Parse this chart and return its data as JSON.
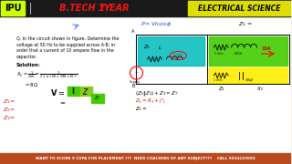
{
  "bg_color": "#f0ede0",
  "header_bg": "#1a1a1a",
  "ipu_box_color": "#ccff00",
  "ipu_text": "IPU",
  "btech_text": "B.TECH 1",
  "btech_super": "ST",
  "btech_text2": " YEAR",
  "es_box_color": "#dddd00",
  "es_text": "ELECTRICAL SCIENCE",
  "footer_text": "WANT TO SCORE 9 CGPA FOR PLACEMENT ???  NEED COACHING OF ANY SUBJECT???    CALL 9034223003",
  "footer_bg": "#b84a1e",
  "q_lines": [
    "Q. In the circuit shown in figure, Determine the",
    "voltage at 50 Hz to be supplied across A-B, in",
    "order that a current of 10 ampere flow in the",
    "capacitor."
  ],
  "blue_color": "#2244cc",
  "red_color": "#cc1111",
  "green_box": "#44cc00",
  "yellow_box": "#ffee00",
  "cyan_box": "#00bbbb",
  "dark_green_box": "#22aa00"
}
